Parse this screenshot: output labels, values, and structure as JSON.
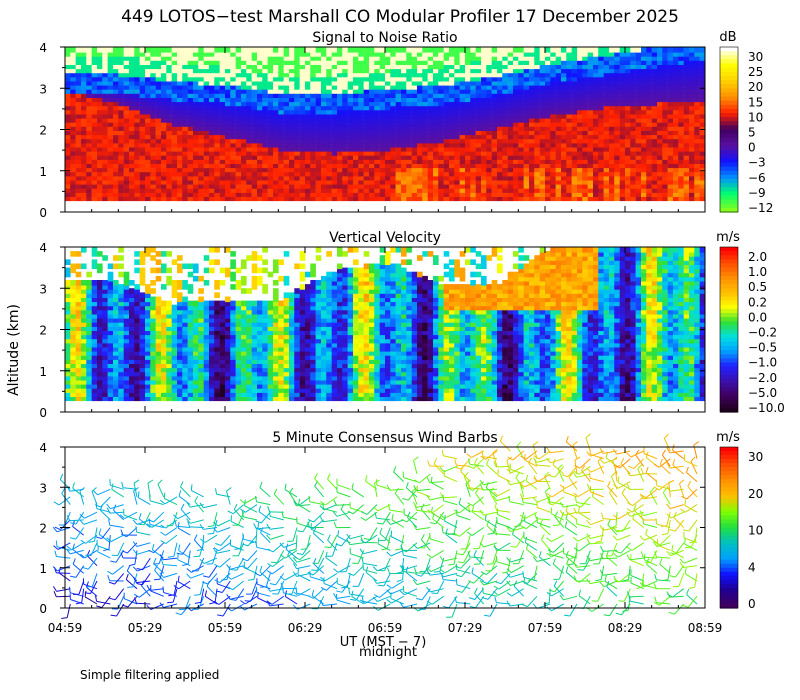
{
  "figure": {
    "title": "449 LOTOS−test Marshall CO Modular Profiler 17 December 2025",
    "ylabel": "Altitude (km)",
    "xlabel": "UT  (MST − 7)",
    "midnight_label": "midnight",
    "footnote": "Simple filtering applied"
  },
  "chart_data": [
    {
      "type": "heatmap",
      "title": "Signal to Noise Ratio",
      "ylabel": "Altitude (km)",
      "ylim": [
        0,
        4
      ],
      "yticks": [
        "0",
        "1",
        "2",
        "3",
        "4"
      ],
      "xlim": [
        0,
        240
      ],
      "xticks_minutes": [
        0,
        30,
        60,
        90,
        120,
        150,
        180,
        210,
        240
      ],
      "colorbar": {
        "unit": "dB",
        "labels": [
          "30",
          "25",
          "20",
          "15",
          "10",
          "5",
          "0",
          "−3",
          "−6",
          "−9",
          "−12"
        ],
        "colors": [
          "#ffffff",
          "#ffff00",
          "#ffd000",
          "#ff9000",
          "#ff2000",
          "#400060",
          "#5a0fa0",
          "#1010ff",
          "#0090ff",
          "#00ff70",
          "#80ff20"
        ],
        "vmin": -13.5,
        "vmax": 33
      },
      "profiles": {
        "t": [
          0,
          20,
          40,
          60,
          80,
          100,
          120,
          140,
          160,
          180,
          200,
          220,
          240
        ],
        "top": [
          3.2,
          3.15,
          3.0,
          2.9,
          2.7,
          2.7,
          2.8,
          2.9,
          3.1,
          3.4,
          3.6,
          3.8,
          4.0
        ],
        "cold": [
          2.9,
          2.6,
          2.1,
          1.8,
          1.5,
          1.4,
          1.5,
          1.7,
          2.0,
          2.3,
          2.5,
          2.6,
          2.7
        ]
      }
    },
    {
      "type": "heatmap",
      "title": "Vertical Velocity",
      "ylabel": "Altitude (km)",
      "ylim": [
        0,
        4
      ],
      "yticks": [
        "0",
        "1",
        "2",
        "3",
        "4"
      ],
      "xlim": [
        0,
        240
      ],
      "xticks_minutes": [
        0,
        30,
        60,
        90,
        120,
        150,
        180,
        210,
        240
      ],
      "colorbar": {
        "unit": "m/s",
        "labels": [
          "2.0",
          "1.0",
          "0.5",
          "0.2",
          "0.0",
          "−0.2",
          "−0.5",
          "−1.0",
          "−2.0",
          "−5.0",
          "−10.0"
        ],
        "colors": [
          "#ff0000",
          "#ff5000",
          "#ff9000",
          "#ffc000",
          "#ffff00",
          "#30e030",
          "#00e0e0",
          "#00a0ff",
          "#2020ff",
          "#3a10b0",
          "#400060",
          "#200020"
        ],
        "vmin": 0,
        "vmax": 12
      },
      "profiles": {
        "t": [
          0,
          20,
          40,
          60,
          80,
          100,
          120,
          140,
          160,
          180,
          200,
          220,
          240
        ],
        "top": [
          3.2,
          3.1,
          2.6,
          2.7,
          2.7,
          3.4,
          3.6,
          3.1,
          3.0,
          3.9,
          4.0,
          4.0,
          4.0
        ]
      }
    },
    {
      "type": "barbs",
      "title": "5 Minute Consensus Wind Barbs",
      "ylabel": "Altitude (km)",
      "ylim": [
        0,
        4
      ],
      "yticks": [
        "0",
        "1",
        "2",
        "3",
        "4"
      ],
      "xlim": [
        0,
        240
      ],
      "xticks_minutes": [
        0,
        30,
        60,
        90,
        120,
        150,
        180,
        210,
        240
      ],
      "colorbar": {
        "unit": "m/s",
        "labels": [
          "30",
          "20",
          "10",
          "4",
          "0"
        ],
        "colors": [
          "#ff0000",
          "#ff5000",
          "#ff9000",
          "#ffc000",
          "#80ff00",
          "#20e040",
          "#00c0c0",
          "#00a0ff",
          "#1010ff",
          "#200090",
          "#400060"
        ],
        "vmin": 0,
        "vmax": 33
      },
      "profiles": {
        "t": [
          0,
          20,
          40,
          60,
          80,
          100,
          120,
          140,
          160,
          180,
          200,
          220,
          240
        ],
        "top": [
          3.0,
          3.0,
          2.9,
          2.9,
          2.9,
          3.0,
          3.0,
          3.6,
          4.0,
          4.0,
          4.0,
          4.2,
          4.2
        ]
      }
    }
  ],
  "xaxis": {
    "ticks": [
      "04:59",
      "05:29",
      "05:59",
      "06:29",
      "06:59",
      "07:29",
      "07:59",
      "08:29",
      "08:59"
    ]
  }
}
